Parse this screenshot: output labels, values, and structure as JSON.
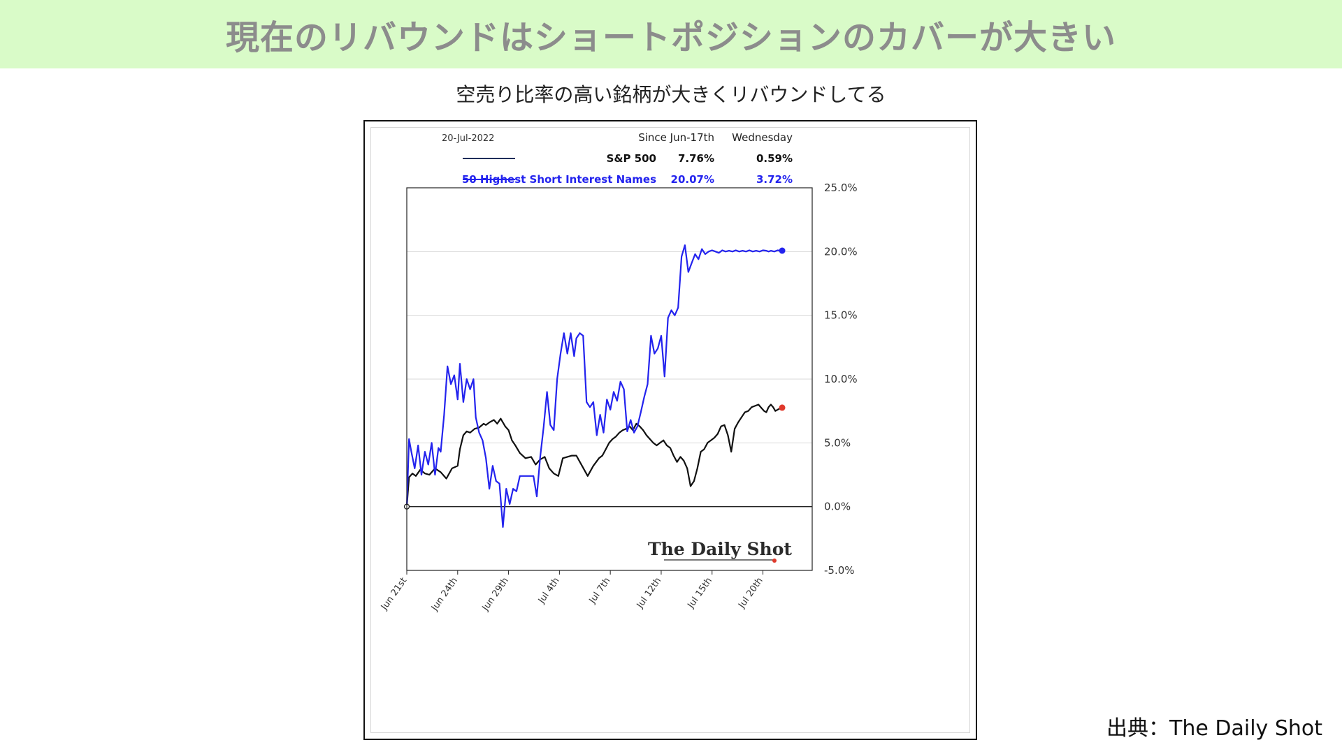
{
  "banner": {
    "title": "現在のリバウンドはショートポジションのカバーが大きい"
  },
  "subtitle": "空売り比率の高い銘柄が大きくリバウンドしてる",
  "source": "出典：The Daily Shot",
  "chart_data": {
    "type": "line",
    "date_label": "20-Jul-2022",
    "table_headers": [
      "Since Jun-17th",
      "Wednesday"
    ],
    "watermark": "The Daily Shot",
    "x_ticks": [
      "Jun 21st",
      "Jun 24th",
      "Jun 29th",
      "Jul 4th",
      "Jul 7th",
      "Jul 12th",
      "Jul 15th",
      "Jul 20th"
    ],
    "x_range": [
      "Jun 21st",
      "Jul 21st"
    ],
    "y_ticks": [
      "25.0%",
      "20.0%",
      "15.0%",
      "10.0%",
      "5.0%",
      "0.0%",
      "-5.0%"
    ],
    "ylim": [
      -5,
      25
    ],
    "grid": true,
    "legend_position": "top",
    "series": [
      {
        "name": "S&P 500",
        "since": "7.76%",
        "wednesday": "0.59%",
        "color": "#111111",
        "end_marker_color": "#e0392b",
        "x": [
          0,
          0.2,
          0.5,
          0.8,
          1.2,
          1.6,
          2.0,
          2.5,
          3.0,
          3.5,
          4.0,
          4.5,
          4.7,
          5.0,
          5.3,
          5.6,
          6.0,
          6.4,
          6.8,
          7.0,
          7.3,
          7.7,
          8.0,
          8.3,
          8.7,
          9.0,
          9.3,
          9.6,
          10.0,
          10.5,
          11.0,
          11.4,
          11.8,
          12.2,
          12.6,
          13.0,
          13.4,
          13.8,
          14.2,
          14.6,
          15.0,
          15.5,
          16.0,
          16.5,
          17.0,
          17.3,
          17.6,
          17.9,
          18.2,
          18.5,
          18.8,
          19.1,
          19.4,
          19.7,
          20.0,
          20.3,
          20.6,
          20.9,
          21.2,
          21.5,
          21.8,
          22.1,
          22.4,
          22.7,
          23.0,
          23.3,
          23.6,
          23.9,
          24.2,
          24.5,
          24.8,
          25.1,
          25.4,
          25.7,
          26.0,
          26.3,
          26.6,
          26.9,
          27.2,
          27.5,
          27.8,
          28.1,
          28.4,
          28.7,
          29.0,
          29.3,
          29.6,
          29.9,
          30.2,
          30.5,
          30.8,
          31.1,
          31.4,
          31.6,
          31.8,
          32.0,
          32.2,
          32.4,
          32.6,
          32.8,
          33.0,
          33.2
        ],
        "values": [
          0,
          2.3,
          2.6,
          2.4,
          2.9,
          2.6,
          2.5,
          3.0,
          2.7,
          2.2,
          3.0,
          3.2,
          4.5,
          5.6,
          5.9,
          5.8,
          6.1,
          6.2,
          6.5,
          6.4,
          6.6,
          6.8,
          6.5,
          6.9,
          6.3,
          6.0,
          5.2,
          4.8,
          4.2,
          3.8,
          3.9,
          3.3,
          3.7,
          3.9,
          3.0,
          2.6,
          2.4,
          3.8,
          3.9,
          4.0,
          4.0,
          3.2,
          2.4,
          3.2,
          3.8,
          4.0,
          4.5,
          5.0,
          5.3,
          5.5,
          5.8,
          6.0,
          6.1,
          6.3,
          6.0,
          6.5,
          6.3,
          6.0,
          5.6,
          5.3,
          5.0,
          4.8,
          5.0,
          5.2,
          4.8,
          4.6,
          4.0,
          3.5,
          3.9,
          3.6,
          3.0,
          1.6,
          2.0,
          3.0,
          4.3,
          4.5,
          5.0,
          5.2,
          5.4,
          5.7,
          6.3,
          6.4,
          5.6,
          4.3,
          6.1,
          6.6,
          7.0,
          7.4,
          7.5,
          7.8,
          7.9,
          8.0,
          7.7,
          7.5,
          7.4,
          7.8,
          8.0,
          7.8,
          7.5,
          7.6,
          7.7,
          7.76
        ]
      },
      {
        "name": "50 Highest Short Interest Names",
        "since": "20.07%",
        "wednesday": "3.72%",
        "color": "#2323ee",
        "end_marker_color": "#2323ee",
        "x": [
          0,
          0.2,
          0.4,
          0.7,
          1.0,
          1.3,
          1.6,
          1.9,
          2.2,
          2.5,
          2.8,
          3.0,
          3.3,
          3.6,
          3.9,
          4.2,
          4.5,
          4.7,
          5.0,
          5.3,
          5.6,
          5.9,
          6.1,
          6.4,
          6.7,
          7.0,
          7.3,
          7.6,
          7.9,
          8.2,
          8.5,
          8.8,
          9.1,
          9.4,
          9.7,
          10.0,
          10.3,
          10.6,
          10.9,
          11.2,
          11.5,
          11.8,
          12.1,
          12.4,
          12.7,
          13.0,
          13.3,
          13.6,
          13.9,
          14.2,
          14.5,
          14.8,
          15.0,
          15.3,
          15.6,
          15.9,
          16.2,
          16.5,
          16.8,
          17.1,
          17.4,
          17.7,
          18.0,
          18.3,
          18.6,
          18.9,
          19.2,
          19.5,
          19.8,
          20.1,
          20.4,
          20.7,
          21.0,
          21.3,
          21.6,
          21.9,
          22.2,
          22.5,
          22.8,
          23.1,
          23.4,
          23.7,
          24.0,
          24.3,
          24.6,
          24.9,
          25.2,
          25.5,
          25.8,
          26.1,
          26.4,
          26.7,
          27.0,
          27.3,
          27.6,
          27.9,
          28.2,
          28.5,
          28.8,
          29.1,
          29.4,
          29.7,
          30.0,
          30.3,
          30.6,
          30.9,
          31.2,
          31.5,
          31.8,
          32.0,
          32.2,
          32.5,
          32.8,
          33.0,
          33.2
        ],
        "values": [
          0,
          5.3,
          4.3,
          3.0,
          4.8,
          2.5,
          4.3,
          3.3,
          5.0,
          2.5,
          4.6,
          4.3,
          7.2,
          11.0,
          9.6,
          10.3,
          8.4,
          11.2,
          8.2,
          10.0,
          9.2,
          10.0,
          7.0,
          5.8,
          5.2,
          3.8,
          1.4,
          3.2,
          2.0,
          1.8,
          -1.6,
          1.4,
          0.2,
          1.4,
          1.2,
          2.4,
          2.4,
          2.4,
          2.4,
          2.4,
          0.8,
          3.9,
          6.2,
          9.0,
          6.4,
          6.0,
          10.0,
          12.0,
          13.6,
          12.0,
          13.6,
          11.8,
          13.2,
          13.6,
          13.4,
          8.2,
          7.8,
          8.2,
          5.6,
          7.2,
          5.8,
          8.4,
          7.6,
          9.0,
          8.3,
          9.8,
          9.2,
          5.9,
          6.8,
          5.8,
          6.3,
          7.4,
          8.6,
          9.6,
          13.4,
          12.0,
          12.4,
          13.4,
          10.2,
          14.8,
          15.4,
          15.0,
          15.6,
          19.6,
          20.5,
          18.4,
          19.1,
          19.8,
          19.4,
          20.2,
          19.8,
          20.0,
          20.1,
          20.0,
          19.9,
          20.1,
          20.0,
          20.07,
          20.0,
          20.1,
          20.0,
          20.07,
          20.0,
          20.1,
          20.0,
          20.07,
          20.0,
          20.1,
          20.07,
          20.0,
          20.07,
          20.0,
          20.1,
          20.07,
          20.07
        ]
      }
    ]
  }
}
